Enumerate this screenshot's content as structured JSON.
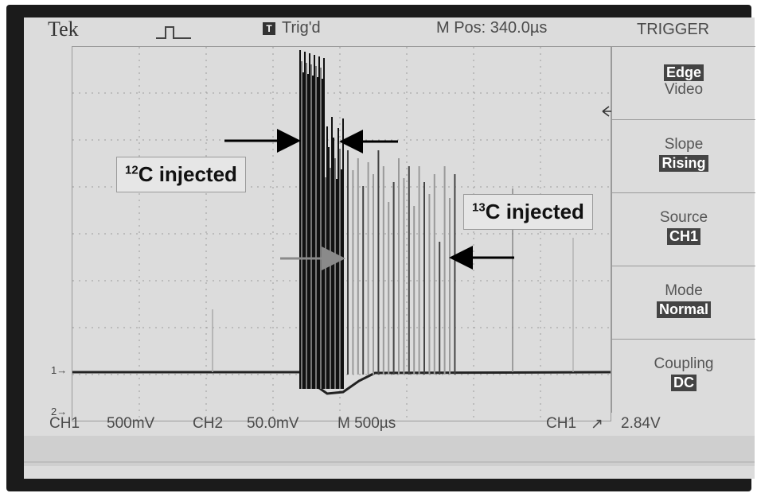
{
  "status_bar": {
    "brand": "Tek",
    "trigger_state": "Trig'd",
    "trigger_icon": "T",
    "position": "M Pos: 340.0µs"
  },
  "menu": {
    "title": "TRIGGER",
    "items": [
      {
        "selected": "Edge",
        "alt": "Video"
      },
      {
        "label": "Slope",
        "value": "Rising"
      },
      {
        "label": "Source",
        "value": "CH1"
      },
      {
        "label": "Mode",
        "value": "Normal"
      },
      {
        "label": "Coupling",
        "value": "DC"
      }
    ]
  },
  "readout": {
    "ch1": "CH1",
    "ch1_scale": "500mV",
    "ch2": "CH2",
    "ch2_scale": "50.0mV",
    "time": "M 500µs",
    "trigger": "CH1",
    "trigger_level": "2.84V"
  },
  "annotations": {
    "label_12c_mass": "12",
    "label_12c_text": "C injected",
    "label_13c_mass": "13",
    "label_13c_text": "C injected"
  },
  "channel_markers": {
    "ch1": "1→",
    "ch2": "2→"
  },
  "colors": {
    "trace": "#1a1a1a",
    "trace_light": "#9a9a9a",
    "arrow": "#000000",
    "arrow_gray": "#8a8a8a"
  }
}
